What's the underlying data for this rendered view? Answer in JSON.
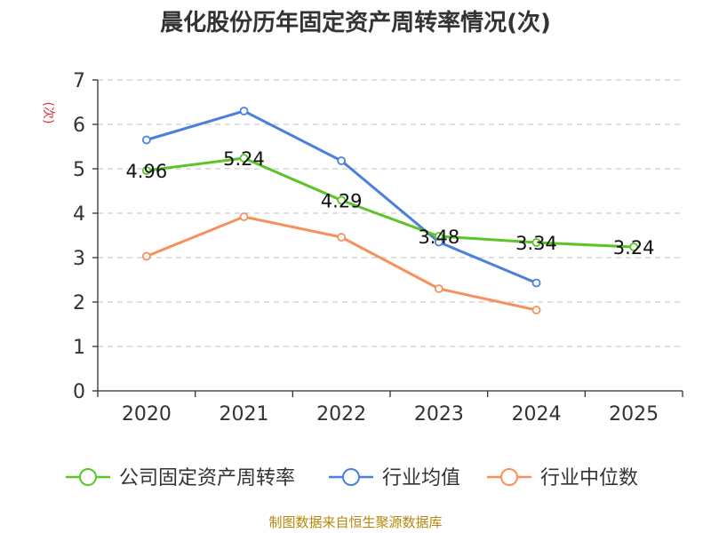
{
  "chart_data": {
    "type": "line",
    "title": "晨化股份历年固定资产周转率情况(次)",
    "ylabel": "(次)",
    "xlabel": "",
    "categories": [
      "2020",
      "2021",
      "2022",
      "2023",
      "2024",
      "2025"
    ],
    "ylim": [
      0,
      7
    ],
    "yticks": [
      "0",
      "1",
      "2",
      "3",
      "4",
      "5",
      "6",
      "7"
    ],
    "grid": true,
    "legend_position": "bottom",
    "series": [
      {
        "name": "公司固定资产周转率",
        "color": "#5cc427",
        "values": [
          4.96,
          5.24,
          4.29,
          3.48,
          3.34,
          3.24
        ],
        "labels": [
          "4.96",
          "5.24",
          "4.29",
          "3.48",
          "3.34",
          "3.24"
        ]
      },
      {
        "name": "行业均值",
        "color": "#4a7fdc",
        "values": [
          5.65,
          6.3,
          5.18,
          3.35,
          2.43,
          null
        ],
        "labels": []
      },
      {
        "name": "行业中位数",
        "color": "#f6905c",
        "values": [
          3.03,
          3.92,
          3.46,
          2.3,
          1.82,
          null
        ],
        "labels": []
      }
    ],
    "source": "制图数据来自恒生聚源数据库"
  }
}
